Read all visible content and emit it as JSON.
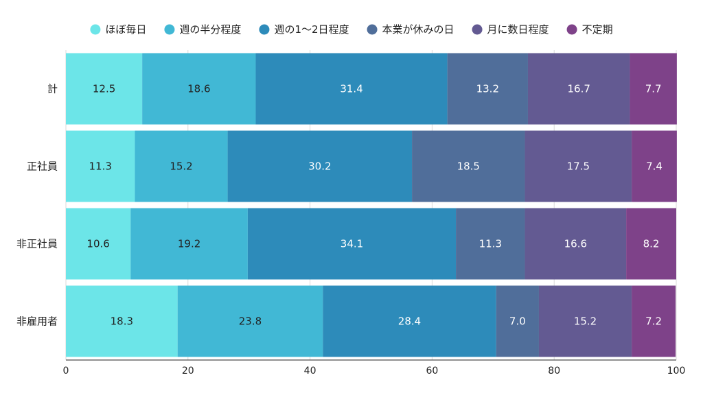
{
  "chart_data": {
    "type": "bar",
    "orientation": "horizontal",
    "stacked": true,
    "categories": [
      "計",
      "正社員",
      "非正社員",
      "非雇用者"
    ],
    "series": [
      {
        "name": "ほぼ毎日",
        "color": "#6ce5e8",
        "label_color": "#222222",
        "values": [
          12.5,
          11.3,
          10.6,
          18.3
        ]
      },
      {
        "name": "週の半分程度",
        "color": "#41b8d5",
        "label_color": "#222222",
        "values": [
          18.6,
          15.2,
          19.2,
          23.8
        ]
      },
      {
        "name": "週の1〜2日程度",
        "color": "#2d8bba",
        "label_color": "#ffffff",
        "values": [
          31.4,
          30.2,
          34.1,
          28.4
        ]
      },
      {
        "name": "本業が休みの日",
        "color": "#506e9a",
        "label_color": "#ffffff",
        "values": [
          13.2,
          18.5,
          11.3,
          7.0
        ]
      },
      {
        "name": "月に数日程度",
        "color": "#635a92",
        "label_color": "#ffffff",
        "values": [
          16.7,
          17.5,
          16.6,
          15.2
        ]
      },
      {
        "name": "不定期",
        "color": "#7e4289",
        "label_color": "#ffffff",
        "values": [
          7.7,
          7.4,
          8.2,
          7.2
        ]
      }
    ],
    "xlim": [
      0,
      100
    ],
    "xticks": [
      "0",
      "20",
      "40",
      "60",
      "80",
      "100"
    ],
    "grid": true,
    "legend_position": "top"
  }
}
